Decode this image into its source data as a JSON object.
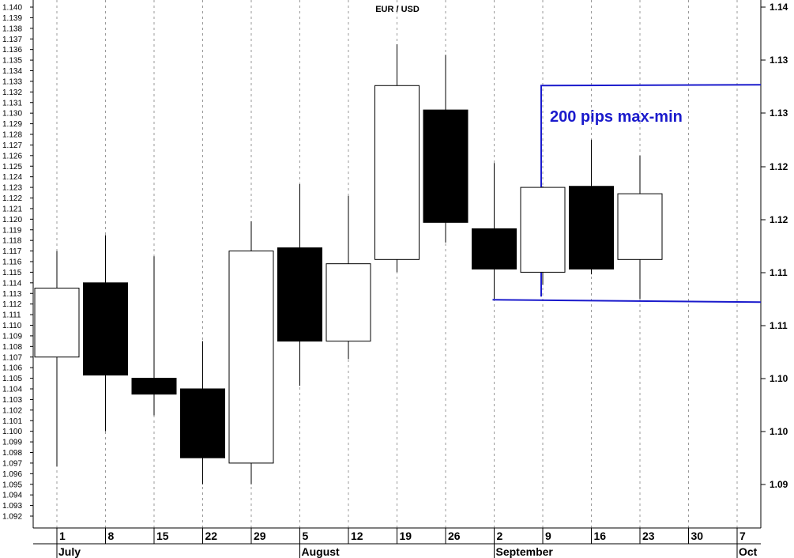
{
  "chart_data": {
    "type": "candlestick",
    "title": "EUR / USD",
    "x_tick_labels": [
      "1",
      "8",
      "15",
      "22",
      "29",
      "5",
      "12",
      "19",
      "26",
      "2",
      "9",
      "16",
      "23",
      "30",
      "7"
    ],
    "month_labels": [
      {
        "label": "July",
        "at_tick": "1"
      },
      {
        "label": "August",
        "at_tick": "5"
      },
      {
        "label": "September",
        "at_tick": "2"
      },
      {
        "label": "Oct",
        "at_tick": "7"
      }
    ],
    "left_axis": {
      "min": 1.092,
      "max": 1.14,
      "step": 0.001
    },
    "right_axis_labels": [
      "1.14",
      "1.13",
      "1.13",
      "1.12",
      "1.12",
      "1.11",
      "1.11",
      "1.10",
      "1.10",
      "1.09"
    ],
    "candles": [
      {
        "date": "1",
        "open": 1.107,
        "high": 1.117,
        "low": 1.0967,
        "close": 1.1135
      },
      {
        "date": "8",
        "open": 1.114,
        "high": 1.1185,
        "low": 1.1,
        "close": 1.1053
      },
      {
        "date": "15",
        "open": 1.105,
        "high": 1.1165,
        "low": 1.1015,
        "close": 1.1035
      },
      {
        "date": "22",
        "open": 1.104,
        "high": 1.1085,
        "low": 1.095,
        "close": 1.0975
      },
      {
        "date": "29",
        "open": 1.097,
        "high": 1.1198,
        "low": 1.095,
        "close": 1.117
      },
      {
        "date": "5",
        "open": 1.1173,
        "high": 1.1233,
        "low": 1.1043,
        "close": 1.1085
      },
      {
        "date": "12",
        "open": 1.1085,
        "high": 1.1222,
        "low": 1.1068,
        "close": 1.1158
      },
      {
        "date": "19",
        "open": 1.1162,
        "high": 1.1365,
        "low": 1.115,
        "close": 1.1326
      },
      {
        "date": "26",
        "open": 1.1303,
        "high": 1.1355,
        "low": 1.1178,
        "close": 1.1197
      },
      {
        "date": "2",
        "open": 1.1191,
        "high": 1.1253,
        "low": 1.1125,
        "close": 1.1153
      },
      {
        "date": "9",
        "open": 1.115,
        "high": 1.1231,
        "low": 1.1138,
        "close": 1.123
      },
      {
        "date": "16",
        "open": 1.1231,
        "high": 1.1275,
        "low": 1.1148,
        "close": 1.1153
      },
      {
        "date": "23",
        "open": 1.1162,
        "high": 1.126,
        "low": 1.1125,
        "close": 1.1224
      }
    ],
    "annotation": {
      "text": "200 pips max-min",
      "upper_level": 1.1326,
      "lower_level": 1.1124
    },
    "colors": {
      "annotation": "#1a1acc",
      "bearish_body": "#000000",
      "bullish_body": "#ffffff",
      "grid": "#9a9a9a"
    },
    "grid": "vertical dashed"
  }
}
